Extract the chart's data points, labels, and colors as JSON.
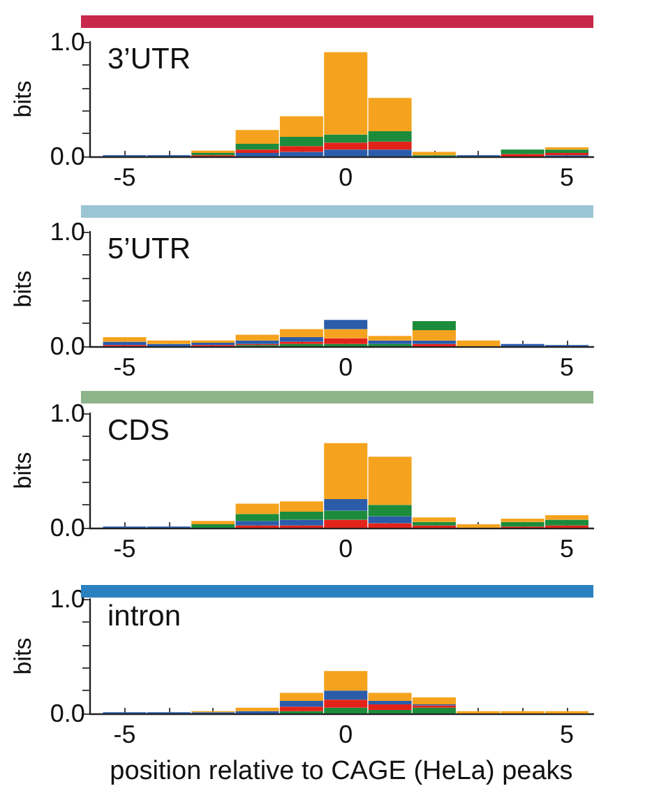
{
  "chart_data": [
    {
      "type": "bar",
      "title": "3’UTR",
      "ylabel": "bits",
      "stacked": true,
      "x": [
        -5,
        -4,
        -3,
        -2,
        -1,
        0,
        1,
        2,
        3,
        4,
        5
      ],
      "xlim": [
        -5.8,
        5.6
      ],
      "xticks": [
        -5,
        {
          "value": -4,
          "label": null
        },
        {
          "value": -3,
          "label": null
        },
        {
          "value": -2,
          "label": null
        },
        {
          "value": -1,
          "label": null
        },
        0,
        {
          "value": 1,
          "label": null
        },
        {
          "value": 2,
          "label": null
        },
        {
          "value": 3,
          "label": null
        },
        {
          "value": 4,
          "label": null
        },
        5
      ],
      "ylim": [
        0,
        1
      ],
      "yticks": [
        {
          "value": 0,
          "label": "0.0"
        },
        {
          "value": 0.2,
          "label": null
        },
        {
          "value": 0.4,
          "label": null
        },
        {
          "value": 0.6,
          "label": null
        },
        {
          "value": 0.8,
          "label": null
        },
        {
          "value": 1,
          "label": "1.0"
        }
      ],
      "series": [
        {
          "color": "#2a5caa",
          "values": [
            0.01,
            0.01,
            0.0,
            0.03,
            0.04,
            0.06,
            0.06,
            0.0,
            0.01,
            0.0,
            0.01
          ]
        },
        {
          "color": "#e2231a",
          "values": [
            0.0,
            0.0,
            0.01,
            0.03,
            0.05,
            0.06,
            0.07,
            0.0,
            0.0,
            0.02,
            0.02
          ]
        },
        {
          "color": "#1c8c3c",
          "values": [
            0.0,
            0.0,
            0.02,
            0.05,
            0.08,
            0.07,
            0.09,
            0.01,
            0.0,
            0.04,
            0.03
          ]
        },
        {
          "color": "#f5a31e",
          "values": [
            0.0,
            0.0,
            0.02,
            0.12,
            0.18,
            0.72,
            0.29,
            0.03,
            0.0,
            0.0,
            0.02
          ]
        }
      ]
    },
    {
      "type": "bar",
      "title": "5’UTR",
      "ylabel": "bits",
      "stacked": true,
      "x": [
        -5,
        -4,
        -3,
        -2,
        -1,
        0,
        1,
        2,
        3,
        4,
        5
      ],
      "xlim": [
        -5.8,
        5.6
      ],
      "xticks": [
        -5,
        {
          "value": -4,
          "label": null
        },
        {
          "value": -3,
          "label": null
        },
        {
          "value": -2,
          "label": null
        },
        {
          "value": -1,
          "label": null
        },
        0,
        {
          "value": 1,
          "label": null
        },
        {
          "value": 2,
          "label": null
        },
        {
          "value": 3,
          "label": null
        },
        {
          "value": 4,
          "label": null
        },
        5
      ],
      "ylim": [
        0,
        1
      ],
      "yticks": [
        {
          "value": 0,
          "label": "0.0"
        },
        {
          "value": 0.2,
          "label": null
        },
        {
          "value": 0.4,
          "label": null
        },
        {
          "value": 0.6,
          "label": null
        },
        {
          "value": 0.8,
          "label": null
        },
        {
          "value": 1,
          "label": "1.0"
        }
      ],
      "series": [
        {
          "color": "#1c8c3c",
          "values": [
            0.0,
            0.0,
            0.0,
            0.01,
            0.02,
            0.02,
            0.02,
            0.0,
            0.0,
            0.0,
            0.0
          ]
        },
        {
          "color": "#e2231a",
          "values": [
            0.01,
            0.0,
            0.01,
            0.01,
            0.02,
            0.05,
            0.0,
            0.02,
            0.0,
            0.0,
            0.0
          ]
        },
        {
          "color": "#2a5caa",
          "values": [
            0.03,
            0.02,
            0.02,
            0.03,
            0.04,
            0.0,
            0.03,
            0.03,
            0.0,
            0.02,
            0.01
          ]
        },
        {
          "color": "#f5a31e",
          "values": [
            0.04,
            0.03,
            0.02,
            0.05,
            0.07,
            0.08,
            0.04,
            0.09,
            0.05,
            0.0,
            0.0
          ]
        },
        {
          "color": "#2a5caa",
          "values": [
            0.0,
            0.0,
            0.0,
            0.0,
            0.0,
            0.08,
            0.0,
            0.0,
            0.0,
            0.0,
            0.0
          ]
        },
        {
          "color": "#1c8c3c",
          "values": [
            0.0,
            0.0,
            0.0,
            0.0,
            0.0,
            0.0,
            0.0,
            0.08,
            0.0,
            0.0,
            0.0
          ]
        }
      ]
    },
    {
      "type": "bar",
      "title": "CDS",
      "ylabel": "bits",
      "stacked": true,
      "x": [
        -5,
        -4,
        -3,
        -2,
        -1,
        0,
        1,
        2,
        3,
        4,
        5
      ],
      "xlim": [
        -5.8,
        5.6
      ],
      "xticks": [
        -5,
        {
          "value": -4,
          "label": null
        },
        {
          "value": -3,
          "label": null
        },
        {
          "value": -2,
          "label": null
        },
        {
          "value": -1,
          "label": null
        },
        0,
        {
          "value": 1,
          "label": null
        },
        {
          "value": 2,
          "label": null
        },
        {
          "value": 3,
          "label": null
        },
        {
          "value": 4,
          "label": null
        },
        5
      ],
      "ylim": [
        0,
        1
      ],
      "yticks": [
        {
          "value": 0,
          "label": "0.0"
        },
        {
          "value": 0.2,
          "label": null
        },
        {
          "value": 0.4,
          "label": null
        },
        {
          "value": 0.6,
          "label": null
        },
        {
          "value": 0.8,
          "label": null
        },
        {
          "value": 1,
          "label": "1.0"
        }
      ],
      "series": [
        {
          "color": "#e2231a",
          "values": [
            0.0,
            0.0,
            0.0,
            0.02,
            0.02,
            0.07,
            0.04,
            0.02,
            0.0,
            0.01,
            0.02
          ]
        },
        {
          "color": "#2a5caa",
          "values": [
            0.01,
            0.01,
            0.0,
            0.04,
            0.05,
            0.0,
            0.06,
            0.0,
            0.0,
            0.0,
            0.0
          ]
        },
        {
          "color": "#1c8c3c",
          "values": [
            0.0,
            0.0,
            0.03,
            0.06,
            0.07,
            0.08,
            0.0,
            0.03,
            0.0,
            0.04,
            0.05
          ]
        },
        {
          "color": "#2a5caa",
          "values": [
            0.0,
            0.0,
            0.0,
            0.0,
            0.0,
            0.1,
            0.0,
            0.0,
            0.0,
            0.0,
            0.0
          ]
        },
        {
          "color": "#1c8c3c",
          "values": [
            0.0,
            0.0,
            0.0,
            0.0,
            0.0,
            0.0,
            0.1,
            0.0,
            0.0,
            0.0,
            0.0
          ]
        },
        {
          "color": "#f5a31e",
          "values": [
            0.0,
            0.0,
            0.03,
            0.09,
            0.09,
            0.49,
            0.42,
            0.04,
            0.03,
            0.03,
            0.04
          ]
        }
      ]
    },
    {
      "type": "bar",
      "title": "intron",
      "ylabel": "bits",
      "xlabel": "position relative to CAGE (HeLa) peaks",
      "stacked": true,
      "x": [
        -5,
        -4,
        -3,
        -2,
        -1,
        0,
        1,
        2,
        3,
        4,
        5
      ],
      "xlim": [
        -5.8,
        5.6
      ],
      "xticks": [
        -5,
        {
          "value": -4,
          "label": null
        },
        {
          "value": -3,
          "label": null
        },
        {
          "value": -2,
          "label": null
        },
        {
          "value": -1,
          "label": null
        },
        0,
        {
          "value": 1,
          "label": null
        },
        {
          "value": 2,
          "label": null
        },
        {
          "value": 3,
          "label": null
        },
        {
          "value": 4,
          "label": null
        },
        5
      ],
      "ylim": [
        0,
        1
      ],
      "yticks": [
        {
          "value": 0,
          "label": "0.0"
        },
        {
          "value": 0.2,
          "label": null
        },
        {
          "value": 0.4,
          "label": null
        },
        {
          "value": 0.6,
          "label": null
        },
        {
          "value": 0.8,
          "label": null
        },
        {
          "value": 1,
          "label": "1.0"
        }
      ],
      "series": [
        {
          "color": "#1c8c3c",
          "values": [
            0.0,
            0.0,
            0.0,
            0.0,
            0.02,
            0.05,
            0.03,
            0.05,
            0.0,
            0.0,
            0.0
          ]
        },
        {
          "color": "#e2231a",
          "values": [
            0.0,
            0.0,
            0.0,
            0.0,
            0.04,
            0.07,
            0.05,
            0.02,
            0.0,
            0.0,
            0.0
          ]
        },
        {
          "color": "#2a5caa",
          "values": [
            0.01,
            0.01,
            0.01,
            0.02,
            0.05,
            0.08,
            0.03,
            0.01,
            0.0,
            0.0,
            0.0
          ]
        },
        {
          "color": "#f5a31e",
          "values": [
            0.0,
            0.0,
            0.01,
            0.03,
            0.07,
            0.17,
            0.07,
            0.06,
            0.02,
            0.02,
            0.02
          ]
        }
      ]
    }
  ]
}
